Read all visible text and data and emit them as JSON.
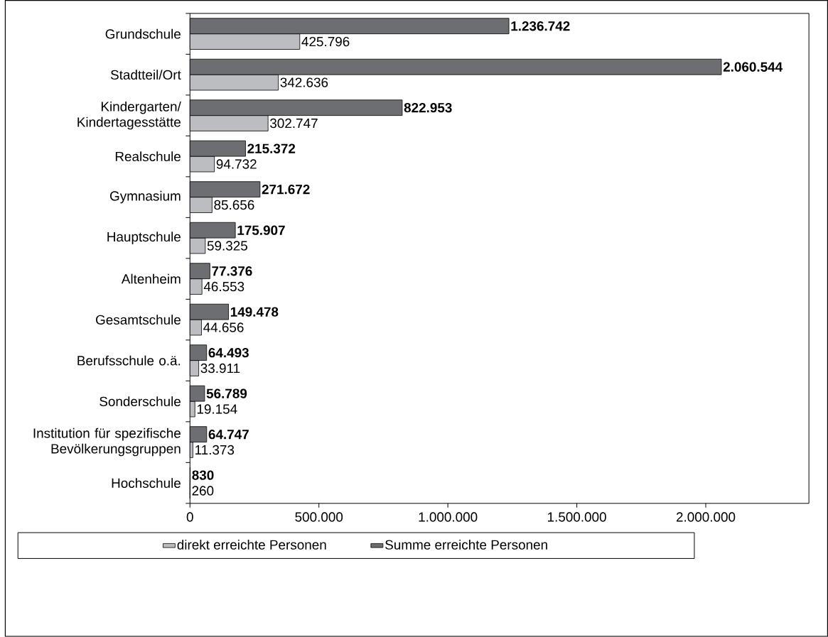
{
  "chart_data": {
    "type": "bar",
    "orientation": "horizontal",
    "categories": [
      "Grundschule",
      "Stadtteil/Ort",
      "Kindergarten/ Kindertagesstätte",
      "Realschule",
      "Gymnasium",
      "Hauptschule",
      "Altenheim",
      "Gesamtschule",
      "Berufsschule o.ä.",
      "Sonderschule",
      "Institution für spezifische Bevölkerungsgruppen",
      "Hochschule"
    ],
    "series": [
      {
        "name": "direkt erreichte Personen",
        "color": "#bcbdc0",
        "values": [
          425796,
          342636,
          302747,
          94732,
          85656,
          59325,
          46553,
          44656,
          33911,
          19154,
          11373,
          260
        ],
        "value_labels": [
          "425.796",
          "342.636",
          "302.747",
          "94.732",
          "85.656",
          "59.325",
          "46.553",
          "44.656",
          "33.911",
          "19.154",
          "11.373",
          "260"
        ]
      },
      {
        "name": "Summe erreichte Personen",
        "color": "#6d6e71",
        "values": [
          1236742,
          2060544,
          822953,
          215372,
          271672,
          175907,
          77376,
          149478,
          64493,
          56789,
          64747,
          830
        ],
        "value_labels": [
          "1.236.742",
          "2.060.544",
          "822.953",
          "215.372",
          "271.672",
          "175.907",
          "77.376",
          "149.478",
          "64.493",
          "56.789",
          "64.747",
          "830"
        ]
      }
    ],
    "xlim": [
      0,
      2400000
    ],
    "xticks": [
      0,
      {
        "value": 500000,
        "label": "500.000"
      },
      {
        "value": 1000000,
        "label": "1.000.000"
      },
      {
        "value": 1500000,
        "label": "1.500.000"
      },
      {
        "value": 2000000,
        "label": "2.000.000"
      }
    ],
    "grid": false,
    "legend": "bottom"
  }
}
